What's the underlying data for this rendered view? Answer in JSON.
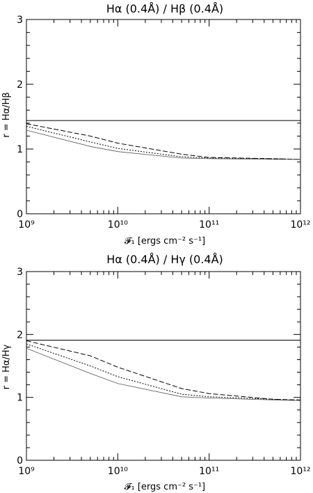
{
  "chart_data": [
    {
      "type": "line",
      "title": "Hα (0.4Å) / Hβ (0.4Å)",
      "xlabel": "𝓕₁ [ergs cm⁻² s⁻¹]",
      "ylabel": "r = Hα/Hβ",
      "x_scale": "log",
      "xlim": [
        1000000000.0,
        1000000000000.0
      ],
      "ylim": [
        0,
        3
      ],
      "x_tick_labels": [
        "10⁹",
        "10¹⁰",
        "10¹¹",
        "10¹²"
      ],
      "y_tick_labels": [
        "0",
        "1",
        "2",
        "3"
      ],
      "x": [
        1000000000.0,
        5000000000.0,
        10000000000.0,
        50000000000.0,
        100000000000.0,
        500000000000.0,
        1000000000000.0
      ],
      "series": [
        {
          "style": "solid",
          "values": [
            1.44,
            1.44,
            1.44,
            1.44,
            1.44,
            1.44,
            1.44
          ]
        },
        {
          "style": "dashed",
          "values": [
            1.39,
            1.2,
            1.09,
            0.92,
            0.87,
            0.85,
            0.84
          ]
        },
        {
          "style": "dotted",
          "values": [
            1.35,
            1.11,
            1.01,
            0.88,
            0.86,
            0.85,
            0.84
          ]
        },
        {
          "style": "thin",
          "values": [
            1.29,
            1.04,
            0.96,
            0.86,
            0.85,
            0.84,
            0.84
          ]
        }
      ]
    },
    {
      "type": "line",
      "title": "Hα (0.4Å) / Hγ (0.4Å)",
      "xlabel": "𝓕₁ [ergs cm⁻² s⁻¹]",
      "ylabel": "r = Hα/Hγ",
      "x_scale": "log",
      "xlim": [
        1000000000.0,
        1000000000000.0
      ],
      "ylim": [
        0,
        3
      ],
      "x_tick_labels": [
        "10⁹",
        "10¹⁰",
        "10¹¹",
        "10¹²"
      ],
      "y_tick_labels": [
        "0",
        "1",
        "2",
        "3"
      ],
      "x": [
        1000000000.0,
        5000000000.0,
        10000000000.0,
        50000000000.0,
        100000000000.0,
        500000000000.0,
        1000000000000.0
      ],
      "series": [
        {
          "style": "solid",
          "values": [
            1.91,
            1.91,
            1.91,
            1.91,
            1.91,
            1.91,
            1.91
          ]
        },
        {
          "style": "dashed",
          "values": [
            1.9,
            1.66,
            1.48,
            1.14,
            1.06,
            0.97,
            0.96
          ]
        },
        {
          "style": "dotted",
          "values": [
            1.85,
            1.5,
            1.33,
            1.05,
            1.01,
            0.97,
            0.95
          ]
        },
        {
          "style": "thin",
          "values": [
            1.78,
            1.38,
            1.22,
            1.01,
            0.99,
            0.96,
            0.95
          ]
        }
      ]
    }
  ]
}
